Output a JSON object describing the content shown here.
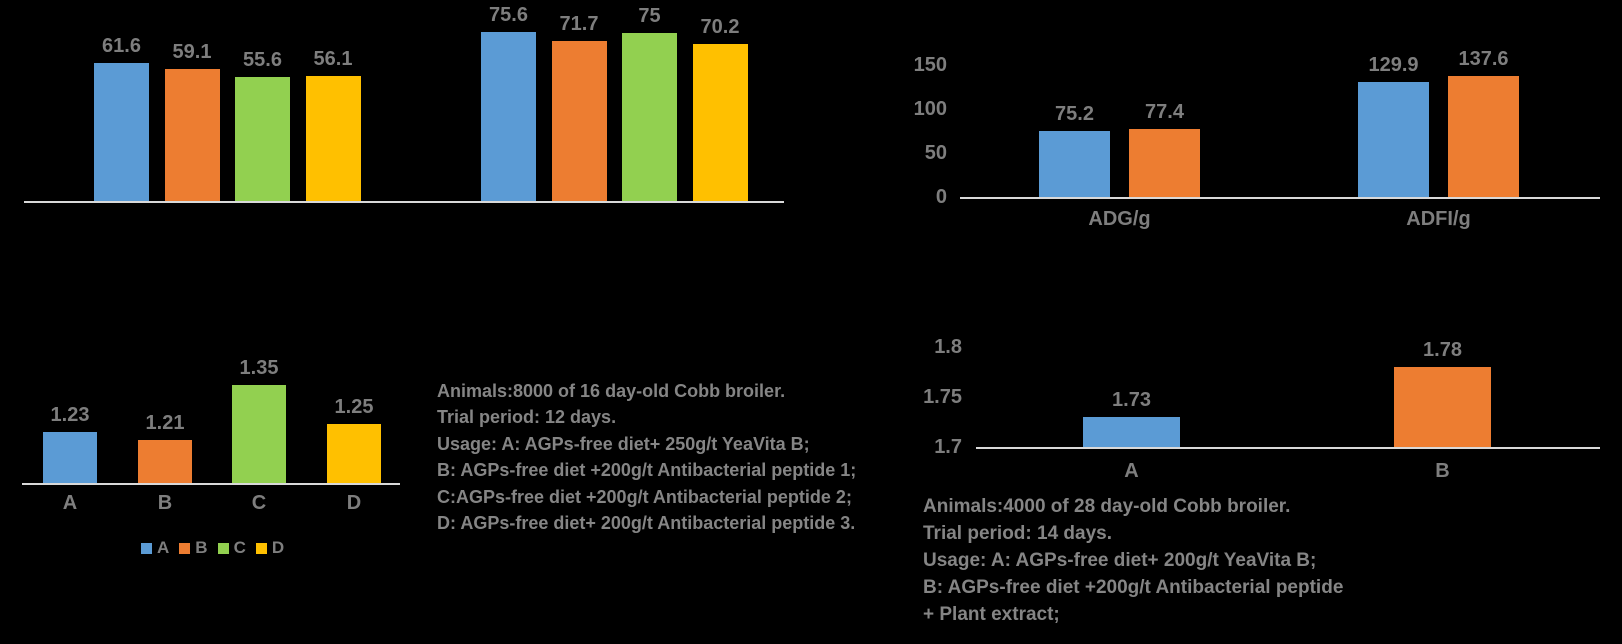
{
  "palette": {
    "background": "#000000",
    "blue": "#5B9BD5",
    "orange": "#ED7D31",
    "green": "#92D050",
    "yellow": "#FFC000",
    "axis_line": "#D9D9D9",
    "text_gray": "#7E7E7E"
  },
  "chart_data": [
    {
      "type": "bar",
      "position": "top-left",
      "categories": [
        "",
        ""
      ],
      "series": [
        {
          "name": "A",
          "color": "#5B9BD5",
          "values": [
            61.6,
            75.6
          ],
          "labels": [
            "61.6",
            "75.6"
          ]
        },
        {
          "name": "B",
          "color": "#ED7D31",
          "values": [
            59.1,
            71.7
          ],
          "labels": [
            "59.1",
            "71.7"
          ]
        },
        {
          "name": "C",
          "color": "#92D050",
          "values": [
            55.6,
            75
          ],
          "labels": [
            "55.6",
            "75"
          ]
        },
        {
          "name": "D",
          "color": "#FFC000",
          "values": [
            56.1,
            70.2
          ],
          "labels": [
            "56.1",
            "70.2"
          ]
        }
      ],
      "ylim": [
        0,
        90
      ],
      "yticks": [],
      "grid": false,
      "data_labels": true,
      "legend_position": "none"
    },
    {
      "type": "bar",
      "position": "top-right",
      "categories": [
        "ADG/g",
        "ADFI/g"
      ],
      "series": [
        {
          "name": "A",
          "color": "#5B9BD5",
          "values": [
            75.2,
            129.9
          ],
          "labels": [
            "75.2",
            "129.9"
          ]
        },
        {
          "name": "B",
          "color": "#ED7D31",
          "values": [
            77.4,
            137.6
          ],
          "labels": [
            "77.4",
            "137.6"
          ]
        }
      ],
      "ylim": [
        0,
        178
      ],
      "yticks": [
        {
          "value": 0,
          "label": "0"
        },
        {
          "value": 50,
          "label": "50"
        },
        {
          "value": 100,
          "label": "100"
        },
        {
          "value": 150,
          "label": "150"
        }
      ],
      "grid": false,
      "data_labels": true,
      "legend_position": "none"
    },
    {
      "type": "bar",
      "position": "bottom-left",
      "categories": [
        "A",
        "B",
        "C",
        "D"
      ],
      "values": [
        1.23,
        1.21,
        1.35,
        1.25
      ],
      "labels": [
        "1.23",
        "1.21",
        "1.35",
        "1.25"
      ],
      "colors": [
        "#5B9BD5",
        "#ED7D31",
        "#92D050",
        "#FFC000"
      ],
      "ylim": [
        1.1,
        1.4
      ],
      "yticks": [],
      "grid": false,
      "data_labels": true,
      "legend_position": "bottom",
      "legend": [
        {
          "label": "A",
          "color": "#5B9BD5"
        },
        {
          "label": "B",
          "color": "#ED7D31"
        },
        {
          "label": "C",
          "color": "#92D050"
        },
        {
          "label": "D",
          "color": "#FFC000"
        }
      ]
    },
    {
      "type": "bar",
      "position": "bottom-right",
      "categories": [
        "A",
        "B"
      ],
      "values": [
        1.73,
        1.78
      ],
      "labels": [
        "1.73",
        "1.78"
      ],
      "colors": [
        "#5B9BD5",
        "#ED7D31"
      ],
      "ylim": [
        1.7,
        1.825
      ],
      "yticks": [
        {
          "value": 1.7,
          "label": "1.7"
        },
        {
          "value": 1.75,
          "label": "1.75"
        },
        {
          "value": 1.8,
          "label": "1.8"
        }
      ],
      "grid": false,
      "data_labels": true,
      "legend_position": "none"
    }
  ],
  "notes_left": {
    "lines": [
      "Animals:8000 of 16 day-old Cobb broiler.",
      "Trial period: 12 days.",
      "Usage: A: AGPs-free diet+ 250g/t YeaVita B;",
      "B: AGPs-free diet +200g/t Antibacterial peptide 1;",
      "C:AGPs-free diet +200g/t Antibacterial peptide 2;",
      "D: AGPs-free diet+ 200g/t Antibacterial peptide 3."
    ]
  },
  "notes_right": {
    "lines": [
      "Animals:4000 of 28 day-old Cobb broiler.",
      "Trial period: 14 days.",
      "Usage: A: AGPs-free diet+ 200g/t YeaVita B;",
      "B: AGPs-free diet +200g/t Antibacterial peptide",
      "+ Plant extract;"
    ]
  }
}
